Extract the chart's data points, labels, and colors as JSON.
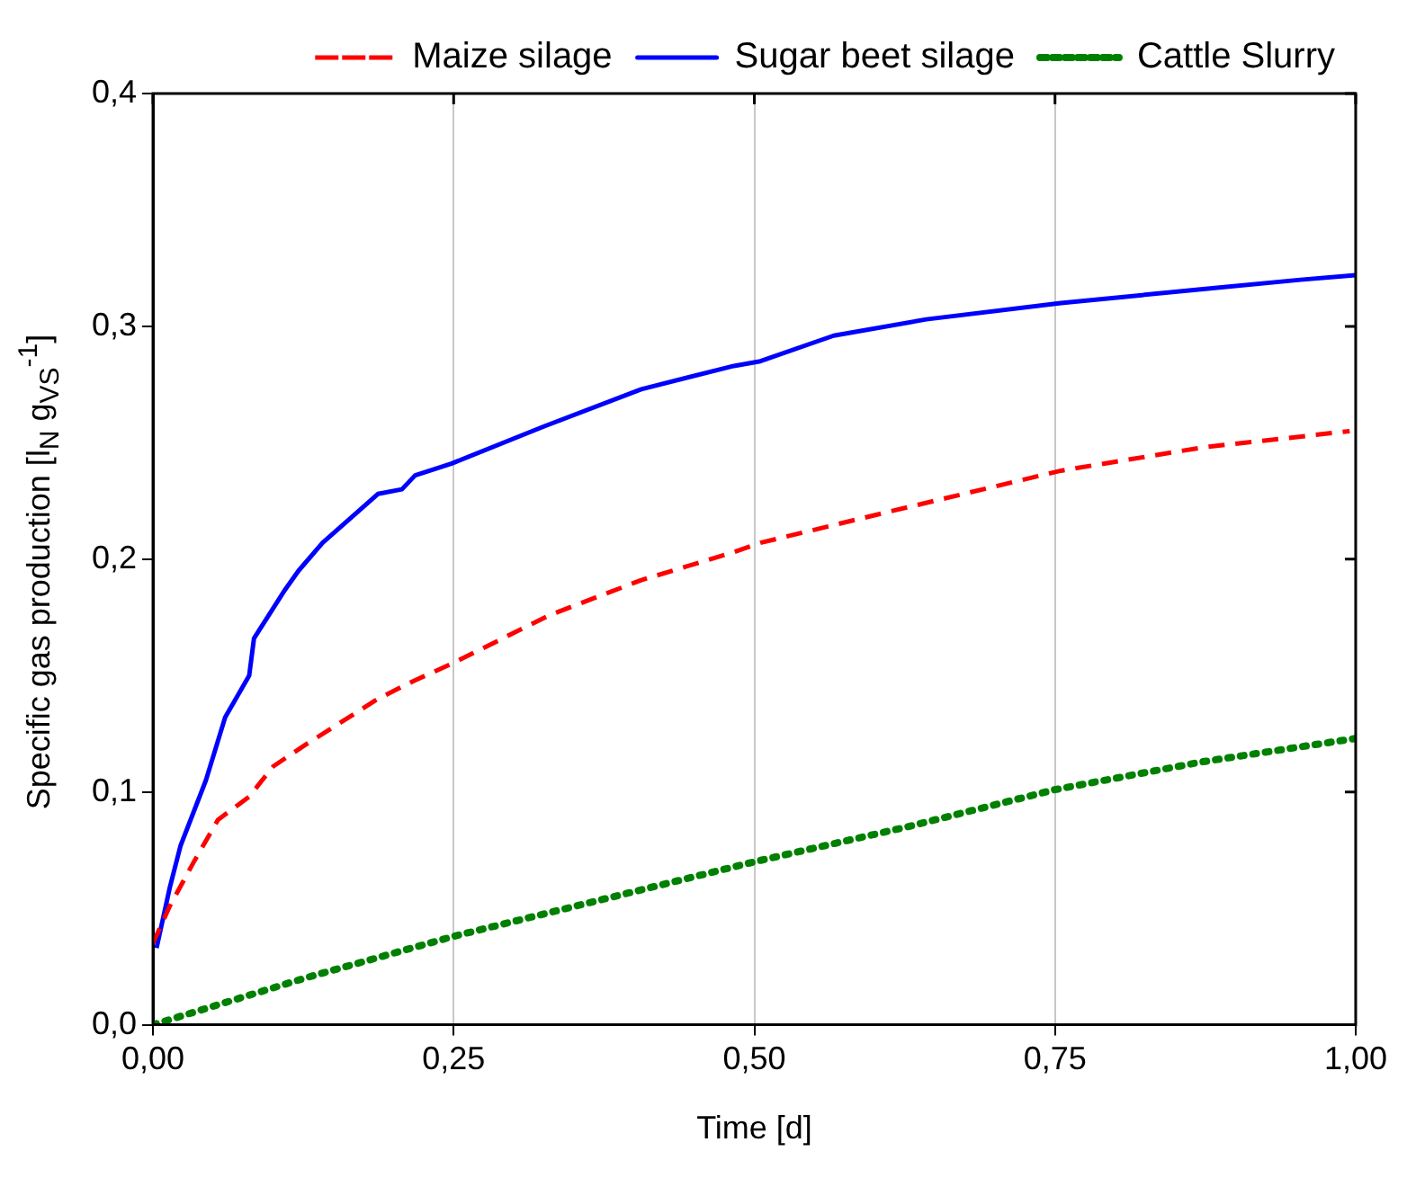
{
  "chart_data": {
    "type": "line",
    "xlabel": "Time [d]",
    "ylabel": "Specific gas production [l$_{N}$ g$_{VS}$$^{-1}$]",
    "xlim": [
      0,
      1
    ],
    "xticks": [
      {
        "value": 0,
        "label": "0,00"
      },
      {
        "value": 0.25,
        "label": "0,25"
      },
      {
        "value": 0.5,
        "label": "0,50"
      },
      {
        "value": 0.75,
        "label": "0,75"
      },
      {
        "value": 1,
        "label": "1,00"
      }
    ],
    "ylim": [
      0,
      0.4
    ],
    "yticks": [
      {
        "value": 0,
        "label": "0,0"
      },
      {
        "value": 0.1,
        "label": "0,1"
      },
      {
        "value": 0.2,
        "label": "0,2"
      },
      {
        "value": 0.3,
        "label": "0,3"
      },
      {
        "value": 0.4,
        "label": "0,4"
      }
    ],
    "grid": "x",
    "legend": "top",
    "marker": "none",
    "series": [
      {
        "name": "Maize silage",
        "color": "#ff0000",
        "line_style": "dashed",
        "x": [
          0,
          0.014,
          0.034,
          0.054,
          0.08,
          0.1,
          0.126,
          0.187,
          0.218,
          0.248,
          0.33,
          0.406,
          0.483,
          0.505,
          0.617,
          0.755,
          0.873,
          0.995
        ],
        "values": [
          0.035,
          0.051,
          0.07,
          0.088,
          0.098,
          0.111,
          0.12,
          0.14,
          0.148,
          0.155,
          0.176,
          0.191,
          0.203,
          0.207,
          0.221,
          0.238,
          0.248,
          0.255
        ]
      },
      {
        "name": "Sugar beet silage",
        "color": "#0000ff",
        "line_style": "solid",
        "x": [
          0.003,
          0.014,
          0.023,
          0.044,
          0.06,
          0.08,
          0.084,
          0.11,
          0.121,
          0.141,
          0.187,
          0.207,
          0.218,
          0.248,
          0.325,
          0.406,
          0.483,
          0.505,
          0.566,
          0.643,
          0.755,
          0.873,
          0.954,
          1.0
        ],
        "values": [
          0.033,
          0.059,
          0.077,
          0.105,
          0.132,
          0.15,
          0.166,
          0.187,
          0.195,
          0.207,
          0.228,
          0.23,
          0.236,
          0.241,
          0.257,
          0.273,
          0.283,
          0.285,
          0.296,
          0.303,
          0.31,
          0.316,
          0.32,
          0.322
        ]
      },
      {
        "name": "Cattle Slurry",
        "color": "#008000",
        "line_style": "dotted",
        "x": [
          0,
          0.126,
          0.25,
          0.5,
          0.627,
          0.75,
          0.873,
          1.0
        ],
        "values": [
          0,
          0.02,
          0.038,
          0.07,
          0.085,
          0.101,
          0.113,
          0.123
        ]
      }
    ]
  }
}
